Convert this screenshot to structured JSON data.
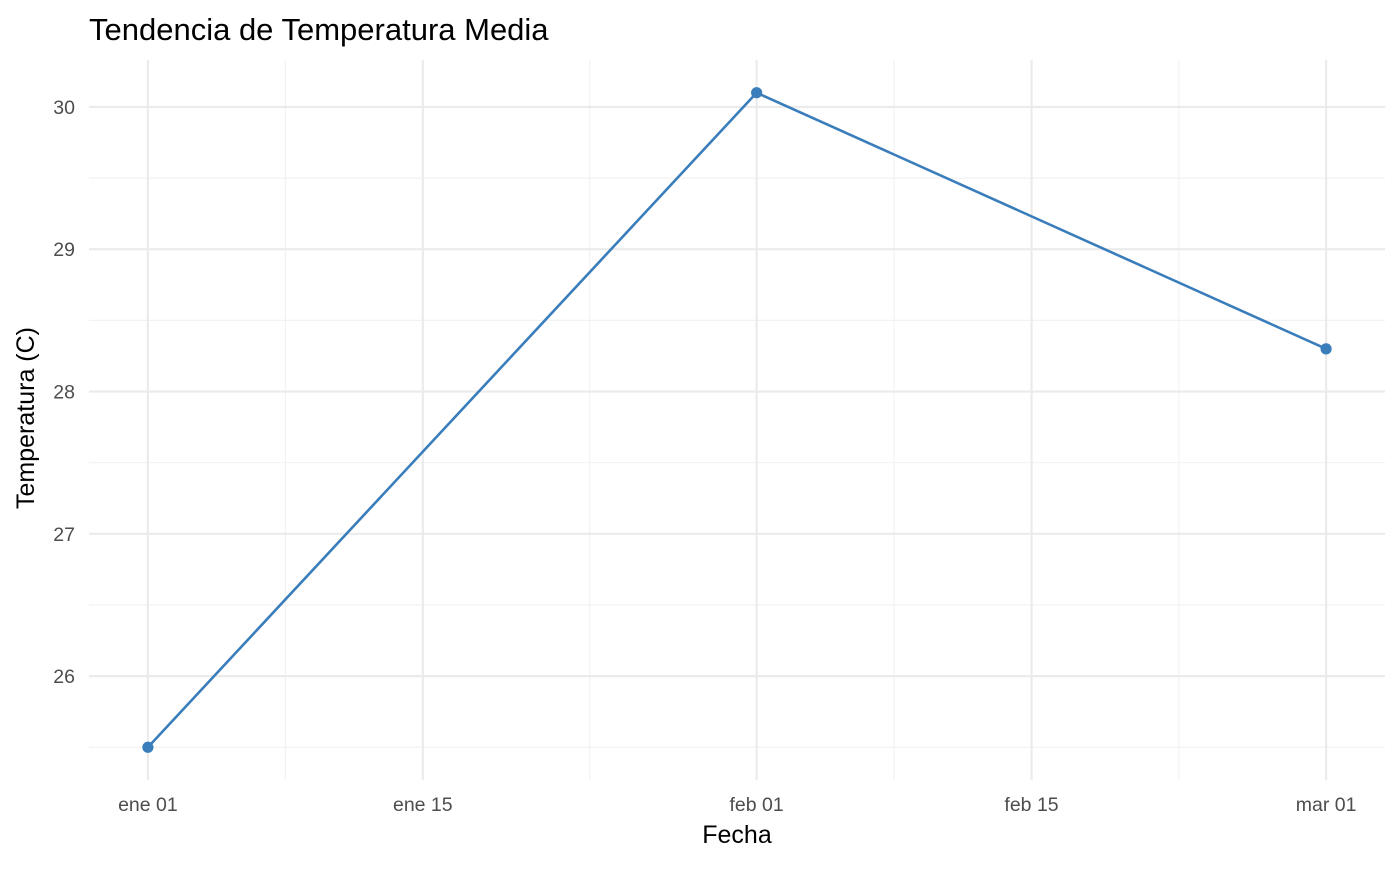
{
  "chart_data": {
    "type": "line",
    "title": "Tendencia de Temperatura Media",
    "xlabel": "Fecha",
    "ylabel": "Temperatura (C)",
    "x": [
      "2024-01-01",
      "2024-02-01",
      "2024-03-01"
    ],
    "series": [
      {
        "values": [
          25.5,
          30.1,
          28.3
        ],
        "color": "#3a7dbb"
      }
    ],
    "x_ticks": [
      {
        "date": "2024-01-01",
        "label": "ene 01"
      },
      {
        "date": "2024-01-15",
        "label": "ene 15"
      },
      {
        "date": "2024-02-01",
        "label": "feb 01"
      },
      {
        "date": "2024-02-15",
        "label": "feb 15"
      },
      {
        "date": "2024-03-01",
        "label": "mar 01"
      }
    ],
    "y_ticks": [
      26,
      27,
      28,
      29,
      30
    ],
    "xlim": [
      "2023-12-29",
      "2024-03-04"
    ],
    "ylim": [
      25.27,
      30.33
    ],
    "grid": true,
    "legend": "none"
  }
}
